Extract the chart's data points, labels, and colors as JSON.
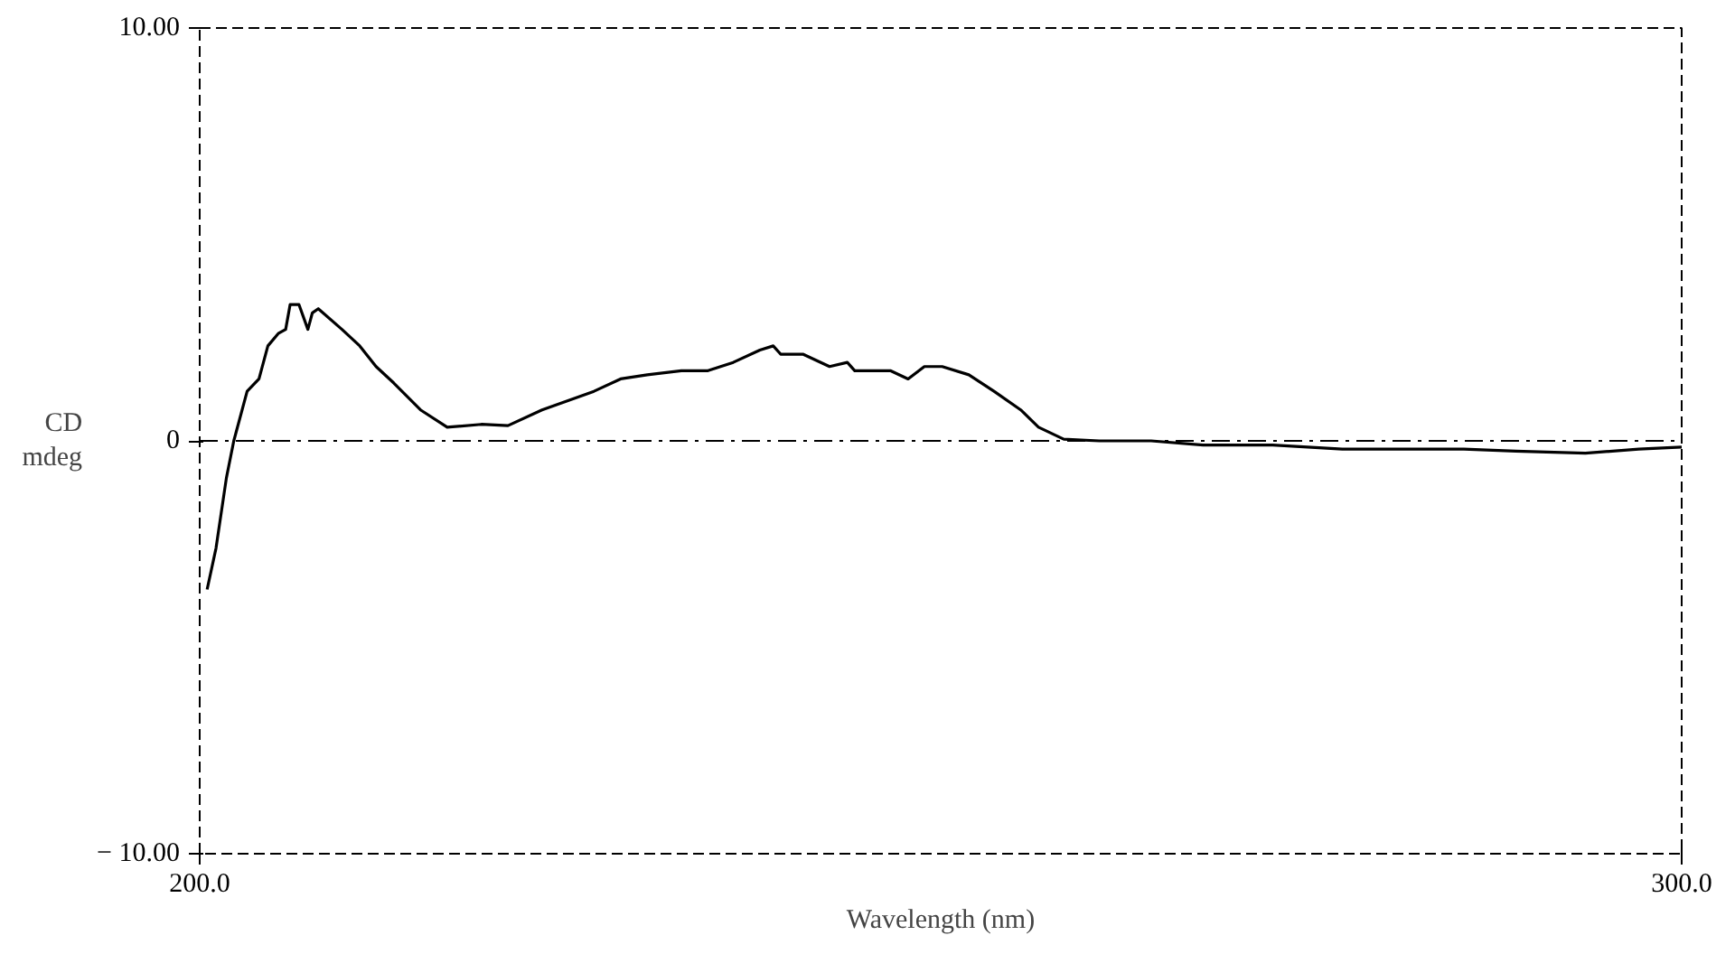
{
  "chart_data": {
    "type": "line",
    "xlabel": "Wavelength (nm)",
    "ylabel": "CD\nmdeg",
    "xlim": [
      200,
      300
    ],
    "ylim": [
      -10,
      10
    ],
    "xticks": [
      {
        "value": 200,
        "label": "200.0"
      },
      {
        "value": 300,
        "label": "300.0"
      }
    ],
    "yticks": [
      {
        "value": -10,
        "label": "− 10.00"
      },
      {
        "value": 0,
        "label": "0"
      },
      {
        "value": 10,
        "label": "10.00"
      }
    ],
    "grid": false,
    "line_style": "solid",
    "ref_lines": [
      {
        "axis": "y",
        "value": 0,
        "line_style": "dashed"
      }
    ],
    "series": [
      {
        "color": "#000000",
        "x": [
          200.5,
          201.1,
          201.8,
          202.3,
          203.2,
          204.0,
          204.6,
          205.3,
          205.8,
          206.1,
          206.7,
          207.3,
          207.6,
          208.0,
          209.6,
          210.8,
          211.9,
          213.1,
          214.9,
          216.7,
          219.0,
          220.8,
          223.1,
          226.6,
          228.4,
          230.2,
          232.5,
          234.3,
          236.0,
          237.8,
          238.7,
          239.2,
          240.7,
          242.5,
          243.7,
          244.2,
          246.6,
          247.8,
          248.9,
          250.1,
          251.9,
          253.6,
          255.4,
          256.6,
          258.3,
          260.7,
          264.2,
          267.7,
          272.4,
          277.1,
          281.8,
          285.3,
          288.8,
          293.5,
          297.1,
          300.0
        ],
        "values": [
          -3.6,
          -2.6,
          -0.9,
          0,
          1.2,
          1.5,
          2.3,
          2.6,
          2.7,
          3.3,
          3.3,
          2.7,
          3.1,
          3.2,
          2.7,
          2.3,
          1.8,
          1.4,
          0.75,
          0.33,
          0.4,
          0.37,
          0.75,
          1.2,
          1.5,
          1.6,
          1.7,
          1.7,
          1.9,
          2.2,
          2.3,
          2.1,
          2.1,
          1.8,
          1.9,
          1.7,
          1.7,
          1.5,
          1.8,
          1.8,
          1.6,
          1.2,
          0.75,
          0.33,
          0.04,
          0,
          0,
          -0.1,
          -0.1,
          -0.2,
          -0.2,
          -0.2,
          -0.25,
          -0.3,
          -0.2,
          -0.15
        ]
      }
    ]
  }
}
